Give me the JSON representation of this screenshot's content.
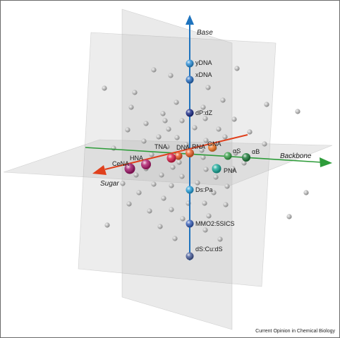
{
  "axes": {
    "base_label": "Base",
    "backbone_label": "Backbone",
    "sugar_label": "Sugar",
    "colors": {
      "base": "#1e73be",
      "backbone": "#2e9c3a",
      "sugar": "#e0401c"
    }
  },
  "nodes": [
    {
      "id": "ydna",
      "label": "yDNA",
      "color": "#2e8fd6"
    },
    {
      "id": "xdna",
      "label": "xDNA",
      "color": "#2a6fc0"
    },
    {
      "id": "dpdz",
      "label": "dP:dZ",
      "color": "#1f2f8a"
    },
    {
      "id": "dna",
      "label": "DNA",
      "color": "#e85a28"
    },
    {
      "id": "rna",
      "label": "RNA",
      "color": "#e8602a"
    },
    {
      "id": "gna",
      "label": "GNA",
      "color": "#f07a2a"
    },
    {
      "id": "tna",
      "label": "TNA",
      "color": "#d8204a"
    },
    {
      "id": "hna",
      "label": "HNA",
      "color": "#b01e6e"
    },
    {
      "id": "cena",
      "label": "CeNA",
      "color": "#a0186a"
    },
    {
      "id": "as",
      "label": "αS",
      "color": "#3aa04a"
    },
    {
      "id": "ab",
      "label": "αB",
      "color": "#1e7a3a"
    },
    {
      "id": "pna",
      "label": "PNA",
      "color": "#1aa898"
    },
    {
      "id": "dspa",
      "label": "Ds:Pa",
      "color": "#2aa0d8"
    },
    {
      "id": "mmo2",
      "label": "MMO2:5SICS",
      "color": "#3a60b8"
    },
    {
      "id": "dscuds",
      "label": "dS:Cu:dS",
      "color": "#4a5e9a"
    }
  ],
  "credit": "Current Opinion in Chemical Biology"
}
